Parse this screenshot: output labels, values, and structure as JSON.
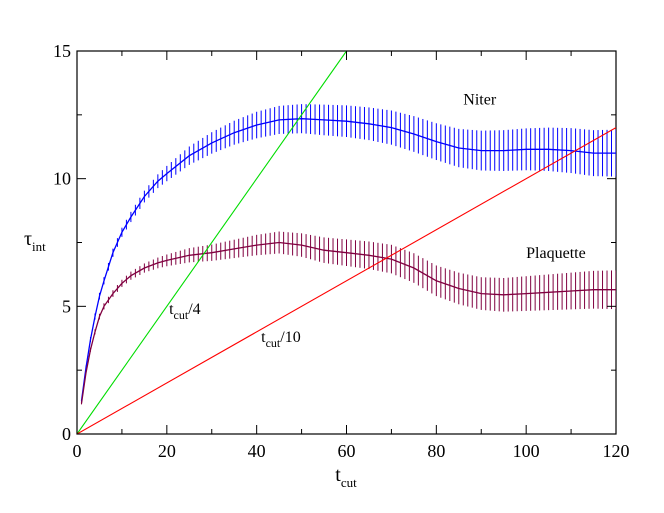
{
  "chart_data": {
    "type": "line",
    "xlabel": "t",
    "xlabel_sub": "cut",
    "ylabel": "τ",
    "ylabel_sub": "int",
    "xlim": [
      0,
      120
    ],
    "ylim": [
      0,
      15
    ],
    "x_ticks": [
      0,
      20,
      40,
      60,
      80,
      100,
      120
    ],
    "y_ticks": [
      0,
      5,
      10,
      15
    ],
    "x_tick_labels": [
      "0",
      "20",
      "40",
      "60",
      "80",
      "100",
      "120"
    ],
    "y_tick_labels": [
      "0",
      "5",
      "10",
      "15"
    ],
    "grid": false,
    "series": [
      {
        "name": "Niter",
        "color": "#0000ff",
        "error_bars": true,
        "x": [
          1,
          2,
          3,
          4,
          5,
          6,
          8,
          10,
          12,
          15,
          18,
          20,
          25,
          30,
          35,
          40,
          45,
          50,
          55,
          60,
          65,
          70,
          75,
          80,
          85,
          90,
          95,
          100,
          105,
          110,
          115,
          120
        ],
        "y": [
          1.3,
          2.6,
          3.7,
          4.6,
          5.4,
          6.0,
          7.1,
          7.9,
          8.5,
          9.3,
          9.9,
          10.2,
          10.9,
          11.4,
          11.8,
          12.1,
          12.3,
          12.35,
          12.3,
          12.25,
          12.15,
          12.0,
          11.75,
          11.45,
          11.2,
          11.1,
          11.1,
          11.15,
          11.15,
          11.1,
          11.0,
          11.0
        ],
        "err": [
          0.05,
          0.08,
          0.1,
          0.12,
          0.13,
          0.14,
          0.16,
          0.18,
          0.2,
          0.23,
          0.27,
          0.3,
          0.36,
          0.42,
          0.47,
          0.52,
          0.55,
          0.57,
          0.6,
          0.62,
          0.64,
          0.67,
          0.7,
          0.72,
          0.75,
          0.78,
          0.8,
          0.82,
          0.85,
          0.88,
          0.9,
          0.92
        ]
      },
      {
        "name": "Plaquette",
        "color": "#800040",
        "error_bars": true,
        "x": [
          1,
          2,
          3,
          4,
          5,
          6,
          8,
          10,
          12,
          15,
          18,
          20,
          25,
          30,
          35,
          40,
          45,
          50,
          55,
          60,
          65,
          70,
          75,
          80,
          85,
          90,
          95,
          100,
          105,
          110,
          115,
          120
        ],
        "y": [
          1.2,
          2.4,
          3.3,
          4.0,
          4.6,
          5.0,
          5.5,
          5.9,
          6.2,
          6.5,
          6.7,
          6.8,
          7.0,
          7.1,
          7.25,
          7.4,
          7.5,
          7.4,
          7.2,
          7.1,
          7.0,
          6.85,
          6.5,
          6.0,
          5.7,
          5.5,
          5.45,
          5.5,
          5.55,
          5.6,
          5.65,
          5.65
        ],
        "err": [
          0.04,
          0.06,
          0.08,
          0.1,
          0.11,
          0.12,
          0.13,
          0.14,
          0.16,
          0.18,
          0.21,
          0.23,
          0.28,
          0.32,
          0.36,
          0.4,
          0.43,
          0.46,
          0.5,
          0.52,
          0.54,
          0.56,
          0.58,
          0.6,
          0.62,
          0.64,
          0.66,
          0.68,
          0.7,
          0.72,
          0.74,
          0.76
        ]
      },
      {
        "name": "t_cut/4",
        "color": "#00dd00",
        "x": [
          0,
          60
        ],
        "y": [
          0,
          15
        ]
      },
      {
        "name": "t_cut/10",
        "color": "#ff0000",
        "x": [
          0,
          120
        ],
        "y": [
          0,
          12
        ]
      }
    ],
    "annotations": [
      {
        "text": "Niter",
        "x": 86,
        "y": 12.9
      },
      {
        "text": "Plaquette",
        "x": 100,
        "y": 6.9
      },
      {
        "text": "t",
        "sub": "cut",
        "tail": "/4",
        "x": 20.5,
        "y": 4.7
      },
      {
        "text": "t",
        "sub": "cut",
        "tail": "/10",
        "x": 41,
        "y": 3.6
      }
    ]
  }
}
